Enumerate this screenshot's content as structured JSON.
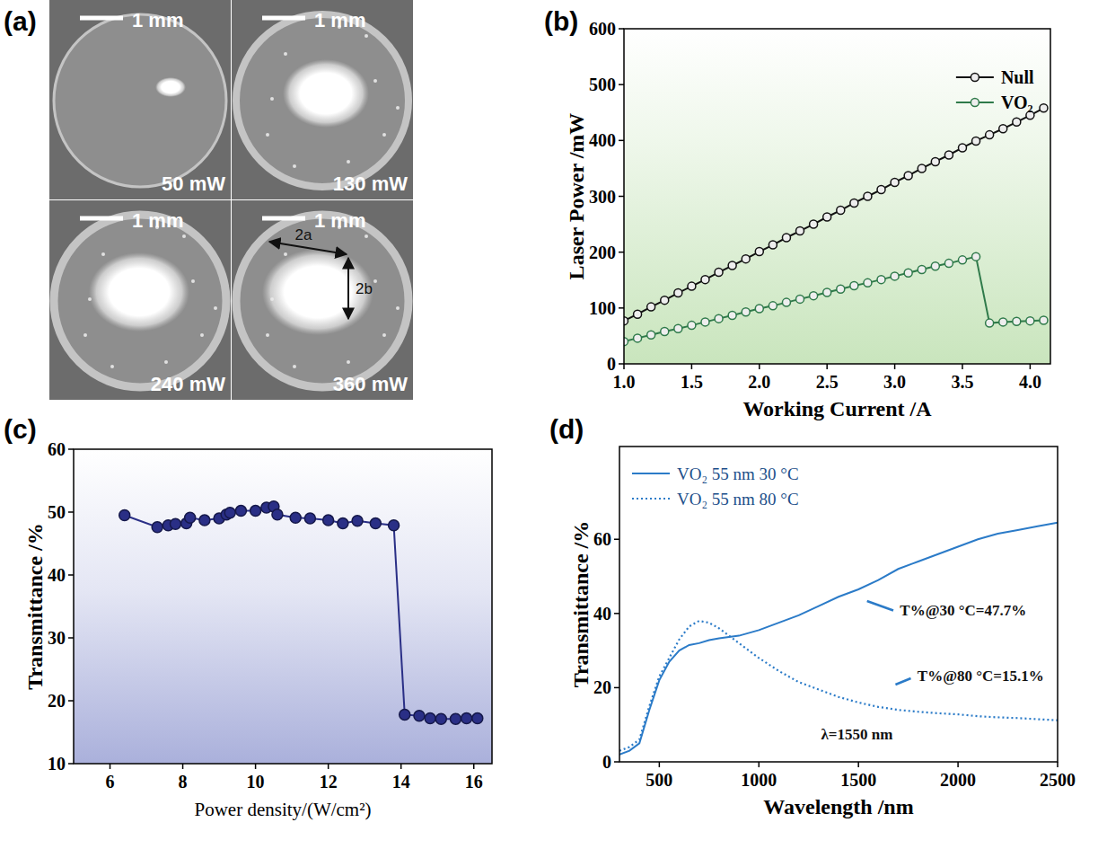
{
  "image_panel": {
    "panel_label": "(a)",
    "scale_bar_labels": [
      "1 mm",
      "1 mm",
      "1 mm",
      "1 mm"
    ],
    "power_labels": [
      "50 mW",
      "130 mW",
      "240 mW",
      "360 mW"
    ],
    "dimension_labels": [
      "2a",
      "2b"
    ]
  },
  "chart_data": [
    {
      "type": "line",
      "panel_label": "(b)",
      "x_label": "Working Current /A",
      "y_label": "Laser Power /mW",
      "x": [
        1.0,
        1.1,
        1.2,
        1.3,
        1.4,
        1.5,
        1.6,
        1.7,
        1.8,
        1.9,
        2.0,
        2.1,
        2.2,
        2.3,
        2.4,
        2.5,
        2.6,
        2.7,
        2.8,
        2.9,
        3.0,
        3.1,
        3.2,
        3.3,
        3.4,
        3.5,
        3.6,
        3.7,
        3.8,
        3.9,
        4.0,
        4.1
      ],
      "series": [
        {
          "name": "Null",
          "color": "#111111",
          "marker": "circle",
          "line_style": "solid",
          "values": [
            77,
            89,
            102,
            114,
            127,
            139,
            151,
            164,
            176,
            188,
            201,
            213,
            226,
            238,
            250,
            263,
            275,
            288,
            300,
            312,
            325,
            337,
            350,
            362,
            374,
            387,
            399,
            410,
            421,
            433,
            445,
            458
          ]
        },
        {
          "name": "VO₂",
          "color": "#2f7a4a",
          "marker": "circle",
          "line_style": "solid",
          "values": [
            40,
            46,
            52,
            58,
            63,
            69,
            75,
            81,
            87,
            93,
            99,
            104,
            110,
            116,
            122,
            128,
            134,
            140,
            145,
            151,
            157,
            163,
            169,
            175,
            180,
            186,
            192,
            73,
            75,
            76,
            77,
            78
          ]
        }
      ],
      "xlim": [
        1.0,
        4.15
      ],
      "ylim": [
        0,
        600
      ],
      "xticks": [
        {
          "value": 1,
          "label": "1.0"
        },
        1.5,
        {
          "value": 2,
          "label": "2.0"
        },
        2.5,
        {
          "value": 3,
          "label": "3.0"
        },
        3.5,
        {
          "value": 4,
          "label": "4.0"
        }
      ],
      "yticks": [
        0,
        100,
        200,
        300,
        400,
        500,
        600
      ],
      "legend": "upper right",
      "grid": false
    },
    {
      "type": "line",
      "panel_label": "(c)",
      "x_label": "Power density/(W/cm²)",
      "y_label": "Transmittance /%",
      "x": [
        6.4,
        7.3,
        7.6,
        7.8,
        8.1,
        8.2,
        8.6,
        9.0,
        9.2,
        9.3,
        9.6,
        10.0,
        10.3,
        10.5,
        10.6,
        11.1,
        11.5,
        12.0,
        12.4,
        12.8,
        13.3,
        13.8,
        14.1,
        14.5,
        14.8,
        15.1,
        15.5,
        15.8,
        16.1
      ],
      "series": [
        {
          "color": "#2a2f86",
          "marker": "circle",
          "line_style": "solid",
          "values": [
            49.5,
            47.6,
            47.9,
            48.1,
            48.2,
            49.1,
            48.7,
            49.0,
            49.6,
            49.9,
            50.2,
            50.2,
            50.7,
            50.9,
            49.6,
            49.1,
            49.0,
            48.7,
            48.2,
            48.6,
            48.2,
            47.9,
            17.8,
            17.6,
            17.2,
            17.1,
            17.1,
            17.2,
            17.2
          ]
        }
      ],
      "xlim": [
        5,
        16.5
      ],
      "ylim": [
        10,
        60
      ],
      "xticks": [
        6,
        8,
        10,
        12,
        14,
        16
      ],
      "yticks": [
        10,
        20,
        30,
        40,
        50,
        60
      ],
      "grid": false
    },
    {
      "type": "line",
      "panel_label": "(d)",
      "x_label": "Wavelength /nm",
      "y_label": "Transmittance /%",
      "x": [
        300,
        350,
        400,
        450,
        500,
        550,
        600,
        650,
        700,
        750,
        800,
        900,
        1000,
        1100,
        1200,
        1300,
        1400,
        1500,
        1600,
        1700,
        1800,
        1900,
        2000,
        2100,
        2200,
        2300,
        2400,
        2500
      ],
      "series": [
        {
          "name": "VO₂ 55 nm 30 °C",
          "color": "#2b7bc8",
          "line_style": "solid",
          "values": [
            2,
            3,
            5,
            14,
            22,
            27,
            30,
            31.5,
            32,
            32.8,
            33.3,
            34,
            35.5,
            37.5,
            39.5,
            42,
            44.5,
            46.5,
            49,
            52,
            54,
            56,
            58,
            60,
            61.5,
            62.5,
            63.5,
            64.5
          ]
        },
        {
          "name": "VO₂ 55 nm 80 °C",
          "color": "#2b7bc8",
          "line_style": "dotted",
          "values": [
            3,
            4,
            6,
            15,
            23,
            28,
            33,
            36.5,
            38,
            37.5,
            36,
            32,
            28,
            24.5,
            21.5,
            19.5,
            17.5,
            16,
            14.8,
            14,
            13.5,
            13.1,
            12.8,
            12.3,
            12,
            11.8,
            11.5,
            11.2
          ]
        }
      ],
      "xlim": [
        300,
        2500
      ],
      "ylim": [
        0,
        85
      ],
      "xticks": [
        500,
        1000,
        1500,
        2000,
        2500
      ],
      "yticks": [
        0,
        20,
        40,
        60
      ],
      "annotations": [
        {
          "text": "T%@30 °C=47.7%"
        },
        {
          "text": "T%@80 °C=15.1%"
        },
        {
          "text": "λ=1550 nm"
        }
      ],
      "legend": "upper left",
      "grid": false
    }
  ]
}
